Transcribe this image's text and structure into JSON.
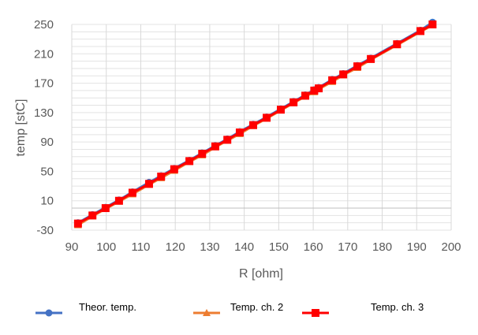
{
  "chart_data": {
    "type": "line",
    "title": "",
    "xlabel": "R [ohm]",
    "ylabel": "temp [stC]",
    "xlim": [
      90,
      200
    ],
    "ylim": [
      -30,
      250
    ],
    "xticks": [
      90,
      100,
      110,
      120,
      130,
      140,
      150,
      160,
      170,
      180,
      190,
      200
    ],
    "yticks": [
      -30,
      10,
      50,
      90,
      130,
      170,
      210,
      250
    ],
    "grid": true,
    "legend_position": "bottom",
    "x": [
      91.8,
      96,
      99.8,
      103.7,
      107.6,
      112.4,
      115.9,
      119.7,
      124.1,
      127.8,
      131.6,
      135.1,
      138.7,
      142.6,
      146.5,
      150.6,
      154.3,
      157.7,
      160.3,
      161.6,
      165.5,
      168.7,
      172.8,
      176.7,
      184.3,
      191.1,
      194.6
    ],
    "series": [
      {
        "name": "Theor. temp.",
        "color": "#4472c4",
        "marker": "circle",
        "values": [
          -20,
          -9,
          1,
          11,
          22,
          35,
          44,
          54,
          65,
          75,
          85,
          94,
          104,
          114,
          124,
          135,
          145,
          154,
          161,
          164,
          175,
          183,
          194,
          204,
          224,
          242,
          253
        ]
      },
      {
        "name": "Temp. ch. 2",
        "color": "#ed7d31",
        "marker": "triangle",
        "values": [
          -23,
          -11,
          -1,
          9,
          19,
          32,
          41,
          51,
          63,
          72,
          83,
          92,
          101,
          112,
          122,
          133,
          143,
          152,
          158,
          162,
          172,
          181,
          191,
          202,
          222,
          240,
          249
        ]
      },
      {
        "name": "Temp. ch. 3",
        "color": "#ff0000",
        "marker": "square",
        "values": [
          -21,
          -10,
          0,
          10,
          21,
          33,
          43,
          53,
          64,
          74,
          84,
          93,
          103,
          113,
          123,
          134,
          144,
          153,
          160,
          163,
          174,
          182,
          193,
          203,
          223,
          241,
          250
        ]
      }
    ]
  }
}
